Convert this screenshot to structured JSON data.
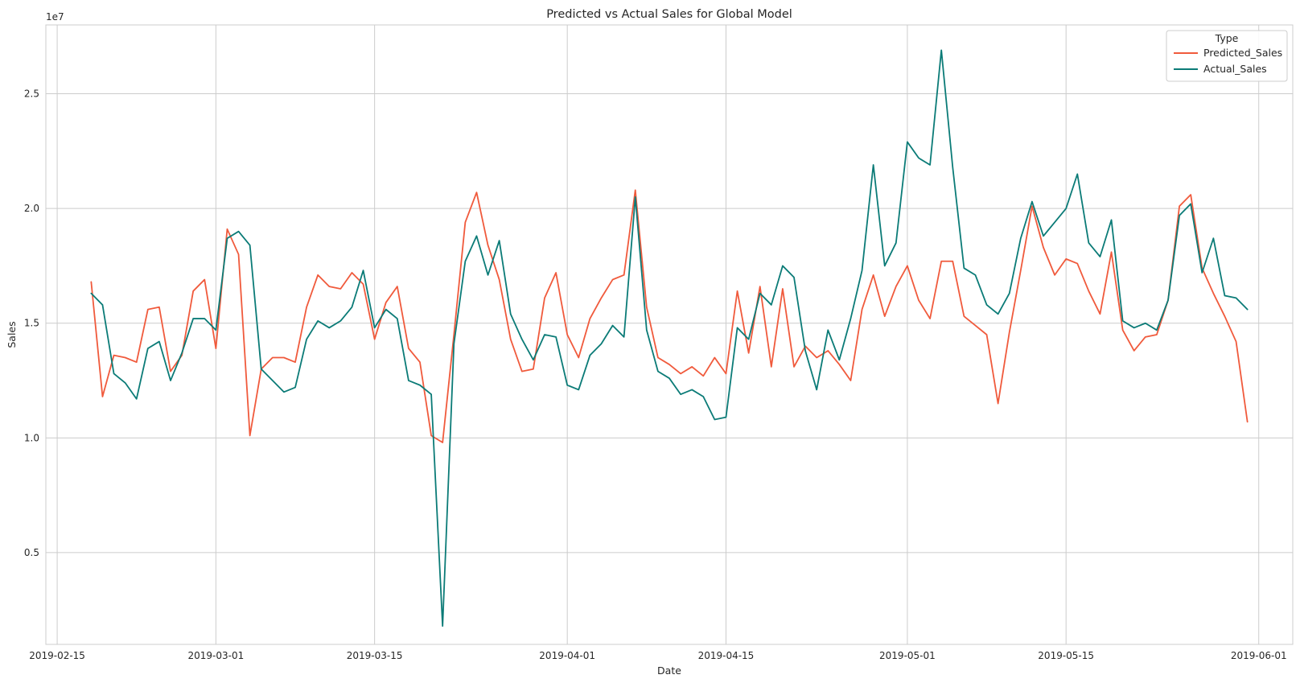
{
  "chart_data": {
    "type": "line",
    "title": "Predicted vs Actual Sales for Global Model",
    "xlabel": "Date",
    "ylabel": "Sales",
    "y_multiplier_label": "1e7",
    "xlim": [
      "2019-02-14",
      "2019-06-04"
    ],
    "ylim": [
      0.1,
      2.8
    ],
    "y_ticks": [
      0.5,
      1.0,
      1.5,
      2.0,
      2.5
    ],
    "y_tick_labels": [
      "0.5",
      "1.0",
      "1.5",
      "2.0",
      "2.5"
    ],
    "x_ticks": [
      "2019-02-15",
      "2019-03-01",
      "2019-03-15",
      "2019-04-01",
      "2019-04-15",
      "2019-05-01",
      "2019-05-15",
      "2019-06-01"
    ],
    "grid": true,
    "legend": {
      "title": "Type",
      "placement": "top-right"
    },
    "start_date": "2019-02-18",
    "series": [
      {
        "name": "Predicted_Sales",
        "color": "#f05a3c",
        "values": [
          1.68,
          1.18,
          1.36,
          1.35,
          1.33,
          1.56,
          1.57,
          1.29,
          1.36,
          1.64,
          1.69,
          1.39,
          1.91,
          1.8,
          1.01,
          1.3,
          1.35,
          1.35,
          1.33,
          1.57,
          1.71,
          1.66,
          1.65,
          1.72,
          1.67,
          1.43,
          1.59,
          1.66,
          1.39,
          1.33,
          1.01,
          0.98,
          1.45,
          1.94,
          2.07,
          1.84,
          1.69,
          1.43,
          1.29,
          1.3,
          1.61,
          1.72,
          1.45,
          1.35,
          1.52,
          1.61,
          1.69,
          1.71,
          2.08,
          1.57,
          1.35,
          1.32,
          1.28,
          1.31,
          1.27,
          1.35,
          1.28,
          1.64,
          1.37,
          1.66,
          1.31,
          1.65,
          1.31,
          1.4,
          1.35,
          1.38,
          1.32,
          1.25,
          1.56,
          1.71,
          1.53,
          1.66,
          1.75,
          1.6,
          1.52,
          1.77,
          1.77,
          1.53,
          1.49,
          1.45,
          1.15,
          1.46,
          1.73,
          2.01,
          1.83,
          1.71,
          1.78,
          1.76,
          1.64,
          1.54,
          1.81,
          1.47,
          1.38,
          1.44,
          1.45,
          1.6,
          2.01,
          2.06,
          1.74,
          1.63,
          1.53,
          1.42,
          1.07
        ]
      },
      {
        "name": "Actual_Sales",
        "color": "#0b7b77",
        "values": [
          1.63,
          1.58,
          1.28,
          1.24,
          1.17,
          1.39,
          1.42,
          1.25,
          1.37,
          1.52,
          1.52,
          1.47,
          1.87,
          1.9,
          1.84,
          1.3,
          1.25,
          1.2,
          1.22,
          1.43,
          1.51,
          1.48,
          1.51,
          1.57,
          1.73,
          1.48,
          1.56,
          1.52,
          1.25,
          1.23,
          1.19,
          0.18,
          1.41,
          1.77,
          1.88,
          1.71,
          1.86,
          1.54,
          1.43,
          1.34,
          1.45,
          1.44,
          1.23,
          1.21,
          1.36,
          1.41,
          1.49,
          1.44,
          2.05,
          1.47,
          1.29,
          1.26,
          1.19,
          1.21,
          1.18,
          1.08,
          1.09,
          1.48,
          1.43,
          1.63,
          1.58,
          1.75,
          1.7,
          1.38,
          1.21,
          1.47,
          1.34,
          1.52,
          1.73,
          2.19,
          1.75,
          1.85,
          2.29,
          2.22,
          2.19,
          2.69,
          2.18,
          1.74,
          1.71,
          1.58,
          1.54,
          1.63,
          1.87,
          2.03,
          1.88,
          1.94,
          2.0,
          2.15,
          1.85,
          1.79,
          1.95,
          1.51,
          1.48,
          1.5,
          1.47,
          1.6,
          1.97,
          2.02,
          1.72,
          1.87,
          1.62,
          1.61,
          1.56
        ]
      }
    ]
  }
}
